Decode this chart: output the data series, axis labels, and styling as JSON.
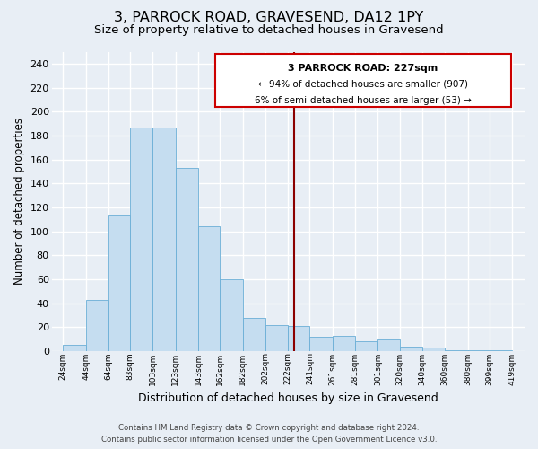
{
  "title": "3, PARROCK ROAD, GRAVESEND, DA12 1PY",
  "subtitle": "Size of property relative to detached houses in Gravesend",
  "xlabel": "Distribution of detached houses by size in Gravesend",
  "ylabel": "Number of detached properties",
  "bar_left_edges": [
    24,
    44,
    64,
    83,
    103,
    123,
    143,
    162,
    182,
    202,
    222,
    241,
    261,
    281,
    301,
    320,
    340,
    360,
    380,
    399
  ],
  "bar_widths": [
    20,
    20,
    19,
    20,
    20,
    20,
    19,
    20,
    20,
    20,
    19,
    20,
    20,
    20,
    19,
    20,
    20,
    20,
    19,
    20
  ],
  "bar_heights": [
    5,
    43,
    114,
    187,
    187,
    153,
    104,
    60,
    28,
    22,
    21,
    12,
    13,
    8,
    10,
    4,
    3,
    1,
    1,
    1
  ],
  "tick_labels": [
    "24sqm",
    "44sqm",
    "64sqm",
    "83sqm",
    "103sqm",
    "123sqm",
    "143sqm",
    "162sqm",
    "182sqm",
    "202sqm",
    "222sqm",
    "241sqm",
    "261sqm",
    "281sqm",
    "301sqm",
    "320sqm",
    "340sqm",
    "360sqm",
    "380sqm",
    "399sqm",
    "419sqm"
  ],
  "tick_positions": [
    24,
    44,
    64,
    83,
    103,
    123,
    143,
    162,
    182,
    202,
    222,
    241,
    261,
    281,
    301,
    320,
    340,
    360,
    380,
    399,
    419
  ],
  "bar_color": "#c5ddf0",
  "bar_edge_color": "#6aaed6",
  "property_line_x": 227,
  "xlim": [
    14,
    430
  ],
  "ylim": [
    0,
    250
  ],
  "yticks": [
    0,
    20,
    40,
    60,
    80,
    100,
    120,
    140,
    160,
    180,
    200,
    220,
    240
  ],
  "annotation_title": "3 PARROCK ROAD: 227sqm",
  "annotation_line1": "← 94% of detached houses are smaller (907)",
  "annotation_line2": "6% of semi-detached houses are larger (53) →",
  "footer_line1": "Contains HM Land Registry data © Crown copyright and database right 2024.",
  "footer_line2": "Contains public sector information licensed under the Open Government Licence v3.0.",
  "background_color": "#e8eef5",
  "grid_color": "#ffffff",
  "title_fontsize": 11.5,
  "subtitle_fontsize": 9.5,
  "ylabel_fontsize": 8.5,
  "xlabel_fontsize": 9,
  "tick_fontsize": 6.5,
  "ytick_fontsize": 8,
  "annotation_box_color": "#ffffff",
  "annotation_box_edge_color": "#cc0000",
  "property_line_color": "#8b0000",
  "footer_color": "#444444",
  "footer_fontsize": 6.2
}
